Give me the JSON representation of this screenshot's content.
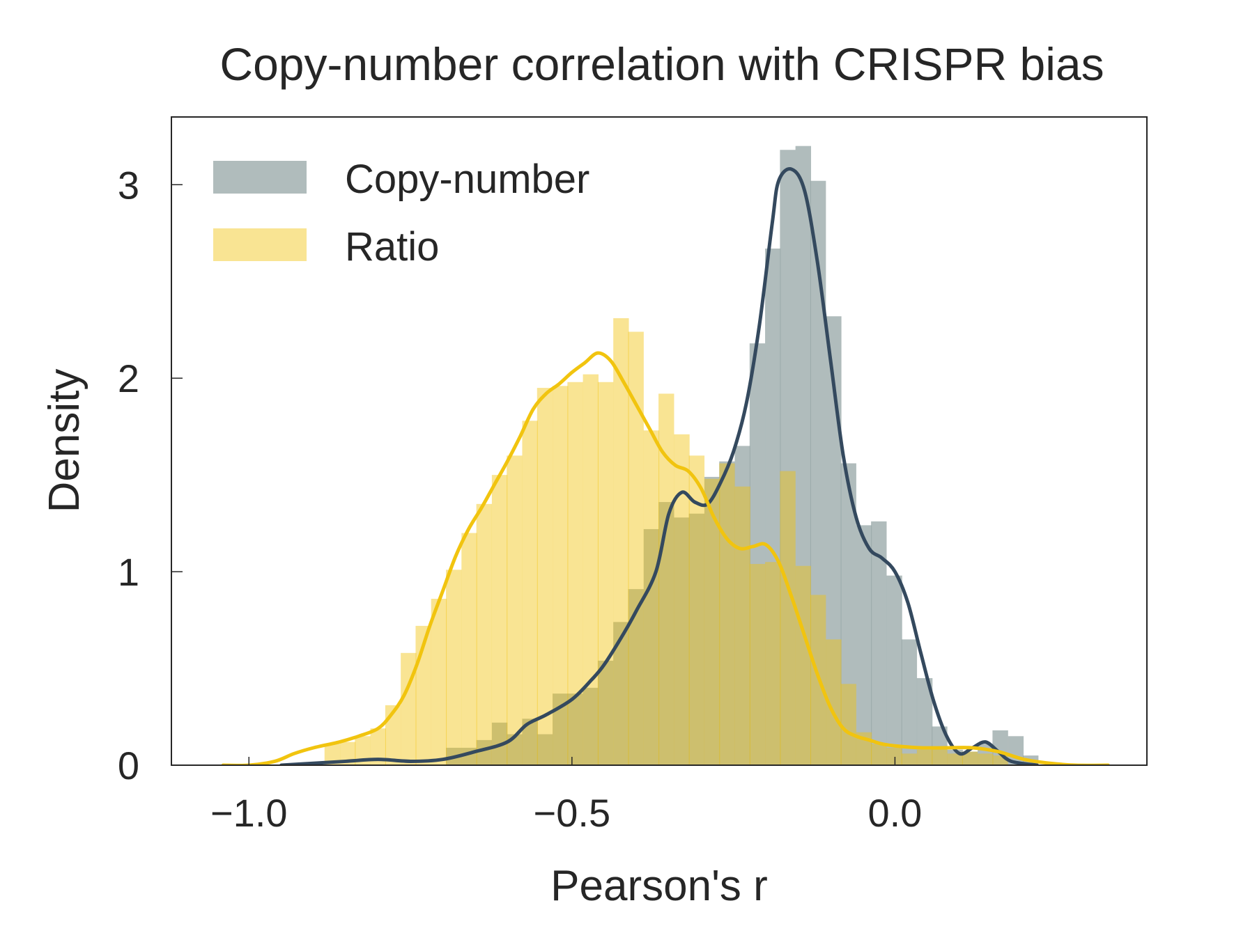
{
  "chart_data": {
    "type": "histogram",
    "title": "Copy-number correlation with CRISPR bias",
    "xlabel": "Pearson's r",
    "ylabel": "Density",
    "xlim": [
      -1.12,
      0.39
    ],
    "ylim": [
      0,
      3.35
    ],
    "xticks": [
      -1.0,
      -0.5,
      0.0
    ],
    "xtick_labels": [
      "−1.0",
      "−0.5",
      "0.0"
    ],
    "yticks": [
      0,
      1,
      2,
      3
    ],
    "ytick_labels": [
      "0",
      "1",
      "2",
      "3"
    ],
    "grid": false,
    "legend": {
      "position": "top-left"
    },
    "bin_width": 0.0235,
    "series": [
      {
        "name": "Copy-number",
        "color": "#95a5a6",
        "fill_opacity": 0.75,
        "kde_color": "#34495e",
        "bins": [
          [
            -0.695,
            0.09
          ],
          [
            -0.671,
            0.09
          ],
          [
            -0.648,
            0.13
          ],
          [
            -0.624,
            0.22
          ],
          [
            -0.601,
            0.16
          ],
          [
            -0.577,
            0.24
          ],
          [
            -0.554,
            0.16
          ],
          [
            -0.53,
            0.37
          ],
          [
            -0.507,
            0.37
          ],
          [
            -0.483,
            0.4
          ],
          [
            -0.46,
            0.54
          ],
          [
            -0.436,
            0.74
          ],
          [
            -0.413,
            0.91
          ],
          [
            -0.389,
            1.22
          ],
          [
            -0.366,
            1.36
          ],
          [
            -0.342,
            1.28
          ],
          [
            -0.319,
            1.3
          ],
          [
            -0.295,
            1.49
          ],
          [
            -0.272,
            1.57
          ],
          [
            -0.248,
            1.65
          ],
          [
            -0.225,
            2.18
          ],
          [
            -0.201,
            2.67
          ],
          [
            -0.178,
            3.18
          ],
          [
            -0.154,
            3.2
          ],
          [
            -0.131,
            3.02
          ],
          [
            -0.107,
            2.32
          ],
          [
            -0.084,
            1.56
          ],
          [
            -0.06,
            1.24
          ],
          [
            -0.037,
            1.26
          ],
          [
            -0.013,
            0.98
          ],
          [
            0.01,
            0.65
          ],
          [
            0.034,
            0.45
          ],
          [
            0.057,
            0.2
          ],
          [
            0.081,
            0.08
          ],
          [
            0.104,
            0.07
          ],
          [
            0.128,
            0.11
          ],
          [
            0.151,
            0.18
          ],
          [
            0.175,
            0.15
          ],
          [
            0.198,
            0.05
          ]
        ],
        "kde": [
          [
            -0.95,
            0.0
          ],
          [
            -0.9,
            0.01
          ],
          [
            -0.85,
            0.02
          ],
          [
            -0.8,
            0.03
          ],
          [
            -0.75,
            0.02
          ],
          [
            -0.7,
            0.03
          ],
          [
            -0.65,
            0.07
          ],
          [
            -0.6,
            0.12
          ],
          [
            -0.57,
            0.21
          ],
          [
            -0.54,
            0.26
          ],
          [
            -0.5,
            0.34
          ],
          [
            -0.47,
            0.44
          ],
          [
            -0.45,
            0.52
          ],
          [
            -0.42,
            0.68
          ],
          [
            -0.4,
            0.8
          ],
          [
            -0.37,
            1.0
          ],
          [
            -0.35,
            1.3
          ],
          [
            -0.33,
            1.41
          ],
          [
            -0.31,
            1.36
          ],
          [
            -0.29,
            1.35
          ],
          [
            -0.27,
            1.46
          ],
          [
            -0.25,
            1.62
          ],
          [
            -0.23,
            1.87
          ],
          [
            -0.21,
            2.27
          ],
          [
            -0.19,
            2.8
          ],
          [
            -0.18,
            3.02
          ],
          [
            -0.16,
            3.08
          ],
          [
            -0.14,
            2.97
          ],
          [
            -0.12,
            2.6
          ],
          [
            -0.1,
            2.1
          ],
          [
            -0.08,
            1.6
          ],
          [
            -0.06,
            1.28
          ],
          [
            -0.04,
            1.12
          ],
          [
            -0.02,
            1.07
          ],
          [
            0.0,
            1.0
          ],
          [
            0.02,
            0.84
          ],
          [
            0.04,
            0.58
          ],
          [
            0.06,
            0.33
          ],
          [
            0.08,
            0.15
          ],
          [
            0.1,
            0.06
          ],
          [
            0.12,
            0.09
          ],
          [
            0.14,
            0.12
          ],
          [
            0.16,
            0.07
          ],
          [
            0.18,
            0.02
          ],
          [
            0.22,
            0.0
          ]
        ]
      },
      {
        "name": "Ratio",
        "color": "#f1c40f",
        "fill_opacity": 0.45,
        "kde_color": "#f1c40f",
        "bins": [
          [
            -0.883,
            0.11
          ],
          [
            -0.859,
            0.12
          ],
          [
            -0.836,
            0.15
          ],
          [
            -0.812,
            0.19
          ],
          [
            -0.789,
            0.31
          ],
          [
            -0.765,
            0.58
          ],
          [
            -0.742,
            0.72
          ],
          [
            -0.718,
            0.86
          ],
          [
            -0.695,
            1.01
          ],
          [
            -0.671,
            1.2
          ],
          [
            -0.648,
            1.35
          ],
          [
            -0.624,
            1.5
          ],
          [
            -0.601,
            1.6
          ],
          [
            -0.577,
            1.78
          ],
          [
            -0.554,
            1.95
          ],
          [
            -0.53,
            1.96
          ],
          [
            -0.507,
            1.98
          ],
          [
            -0.483,
            2.02
          ],
          [
            -0.46,
            1.98
          ],
          [
            -0.436,
            2.31
          ],
          [
            -0.413,
            2.24
          ],
          [
            -0.389,
            1.73
          ],
          [
            -0.366,
            1.92
          ],
          [
            -0.342,
            1.71
          ],
          [
            -0.319,
            1.6
          ],
          [
            -0.295,
            1.48
          ],
          [
            -0.272,
            1.56
          ],
          [
            -0.248,
            1.44
          ],
          [
            -0.225,
            1.04
          ],
          [
            -0.201,
            1.05
          ],
          [
            -0.178,
            1.52
          ],
          [
            -0.154,
            1.03
          ],
          [
            -0.131,
            0.88
          ],
          [
            -0.107,
            0.65
          ],
          [
            -0.084,
            0.42
          ],
          [
            -0.06,
            0.17
          ],
          [
            -0.037,
            0.11
          ],
          [
            -0.013,
            0.09
          ],
          [
            0.01,
            0.06
          ],
          [
            0.034,
            0.08
          ],
          [
            0.057,
            0.09
          ],
          [
            0.081,
            0.06
          ],
          [
            0.104,
            0.07
          ],
          [
            0.128,
            0.06
          ],
          [
            0.151,
            0.05
          ]
        ],
        "kde": [
          [
            -1.04,
            0.0
          ],
          [
            -1.0,
            0.0
          ],
          [
            -0.96,
            0.02
          ],
          [
            -0.93,
            0.06
          ],
          [
            -0.9,
            0.09
          ],
          [
            -0.86,
            0.12
          ],
          [
            -0.83,
            0.15
          ],
          [
            -0.8,
            0.19
          ],
          [
            -0.78,
            0.26
          ],
          [
            -0.76,
            0.36
          ],
          [
            -0.74,
            0.52
          ],
          [
            -0.72,
            0.72
          ],
          [
            -0.7,
            0.9
          ],
          [
            -0.68,
            1.08
          ],
          [
            -0.66,
            1.22
          ],
          [
            -0.64,
            1.33
          ],
          [
            -0.62,
            1.45
          ],
          [
            -0.6,
            1.57
          ],
          [
            -0.58,
            1.7
          ],
          [
            -0.56,
            1.84
          ],
          [
            -0.54,
            1.92
          ],
          [
            -0.52,
            1.97
          ],
          [
            -0.5,
            2.03
          ],
          [
            -0.48,
            2.08
          ],
          [
            -0.46,
            2.13
          ],
          [
            -0.44,
            2.09
          ],
          [
            -0.42,
            1.98
          ],
          [
            -0.4,
            1.86
          ],
          [
            -0.38,
            1.74
          ],
          [
            -0.36,
            1.62
          ],
          [
            -0.34,
            1.55
          ],
          [
            -0.32,
            1.52
          ],
          [
            -0.3,
            1.43
          ],
          [
            -0.28,
            1.28
          ],
          [
            -0.26,
            1.17
          ],
          [
            -0.24,
            1.12
          ],
          [
            -0.22,
            1.13
          ],
          [
            -0.2,
            1.14
          ],
          [
            -0.18,
            1.05
          ],
          [
            -0.16,
            0.87
          ],
          [
            -0.14,
            0.67
          ],
          [
            -0.12,
            0.47
          ],
          [
            -0.1,
            0.3
          ],
          [
            -0.08,
            0.19
          ],
          [
            -0.06,
            0.15
          ],
          [
            -0.04,
            0.13
          ],
          [
            -0.02,
            0.11
          ],
          [
            0.0,
            0.1
          ],
          [
            0.04,
            0.09
          ],
          [
            0.08,
            0.09
          ],
          [
            0.12,
            0.09
          ],
          [
            0.16,
            0.07
          ],
          [
            0.2,
            0.03
          ],
          [
            0.24,
            0.01
          ],
          [
            0.28,
            0.0
          ],
          [
            0.33,
            0.0
          ]
        ]
      }
    ]
  }
}
